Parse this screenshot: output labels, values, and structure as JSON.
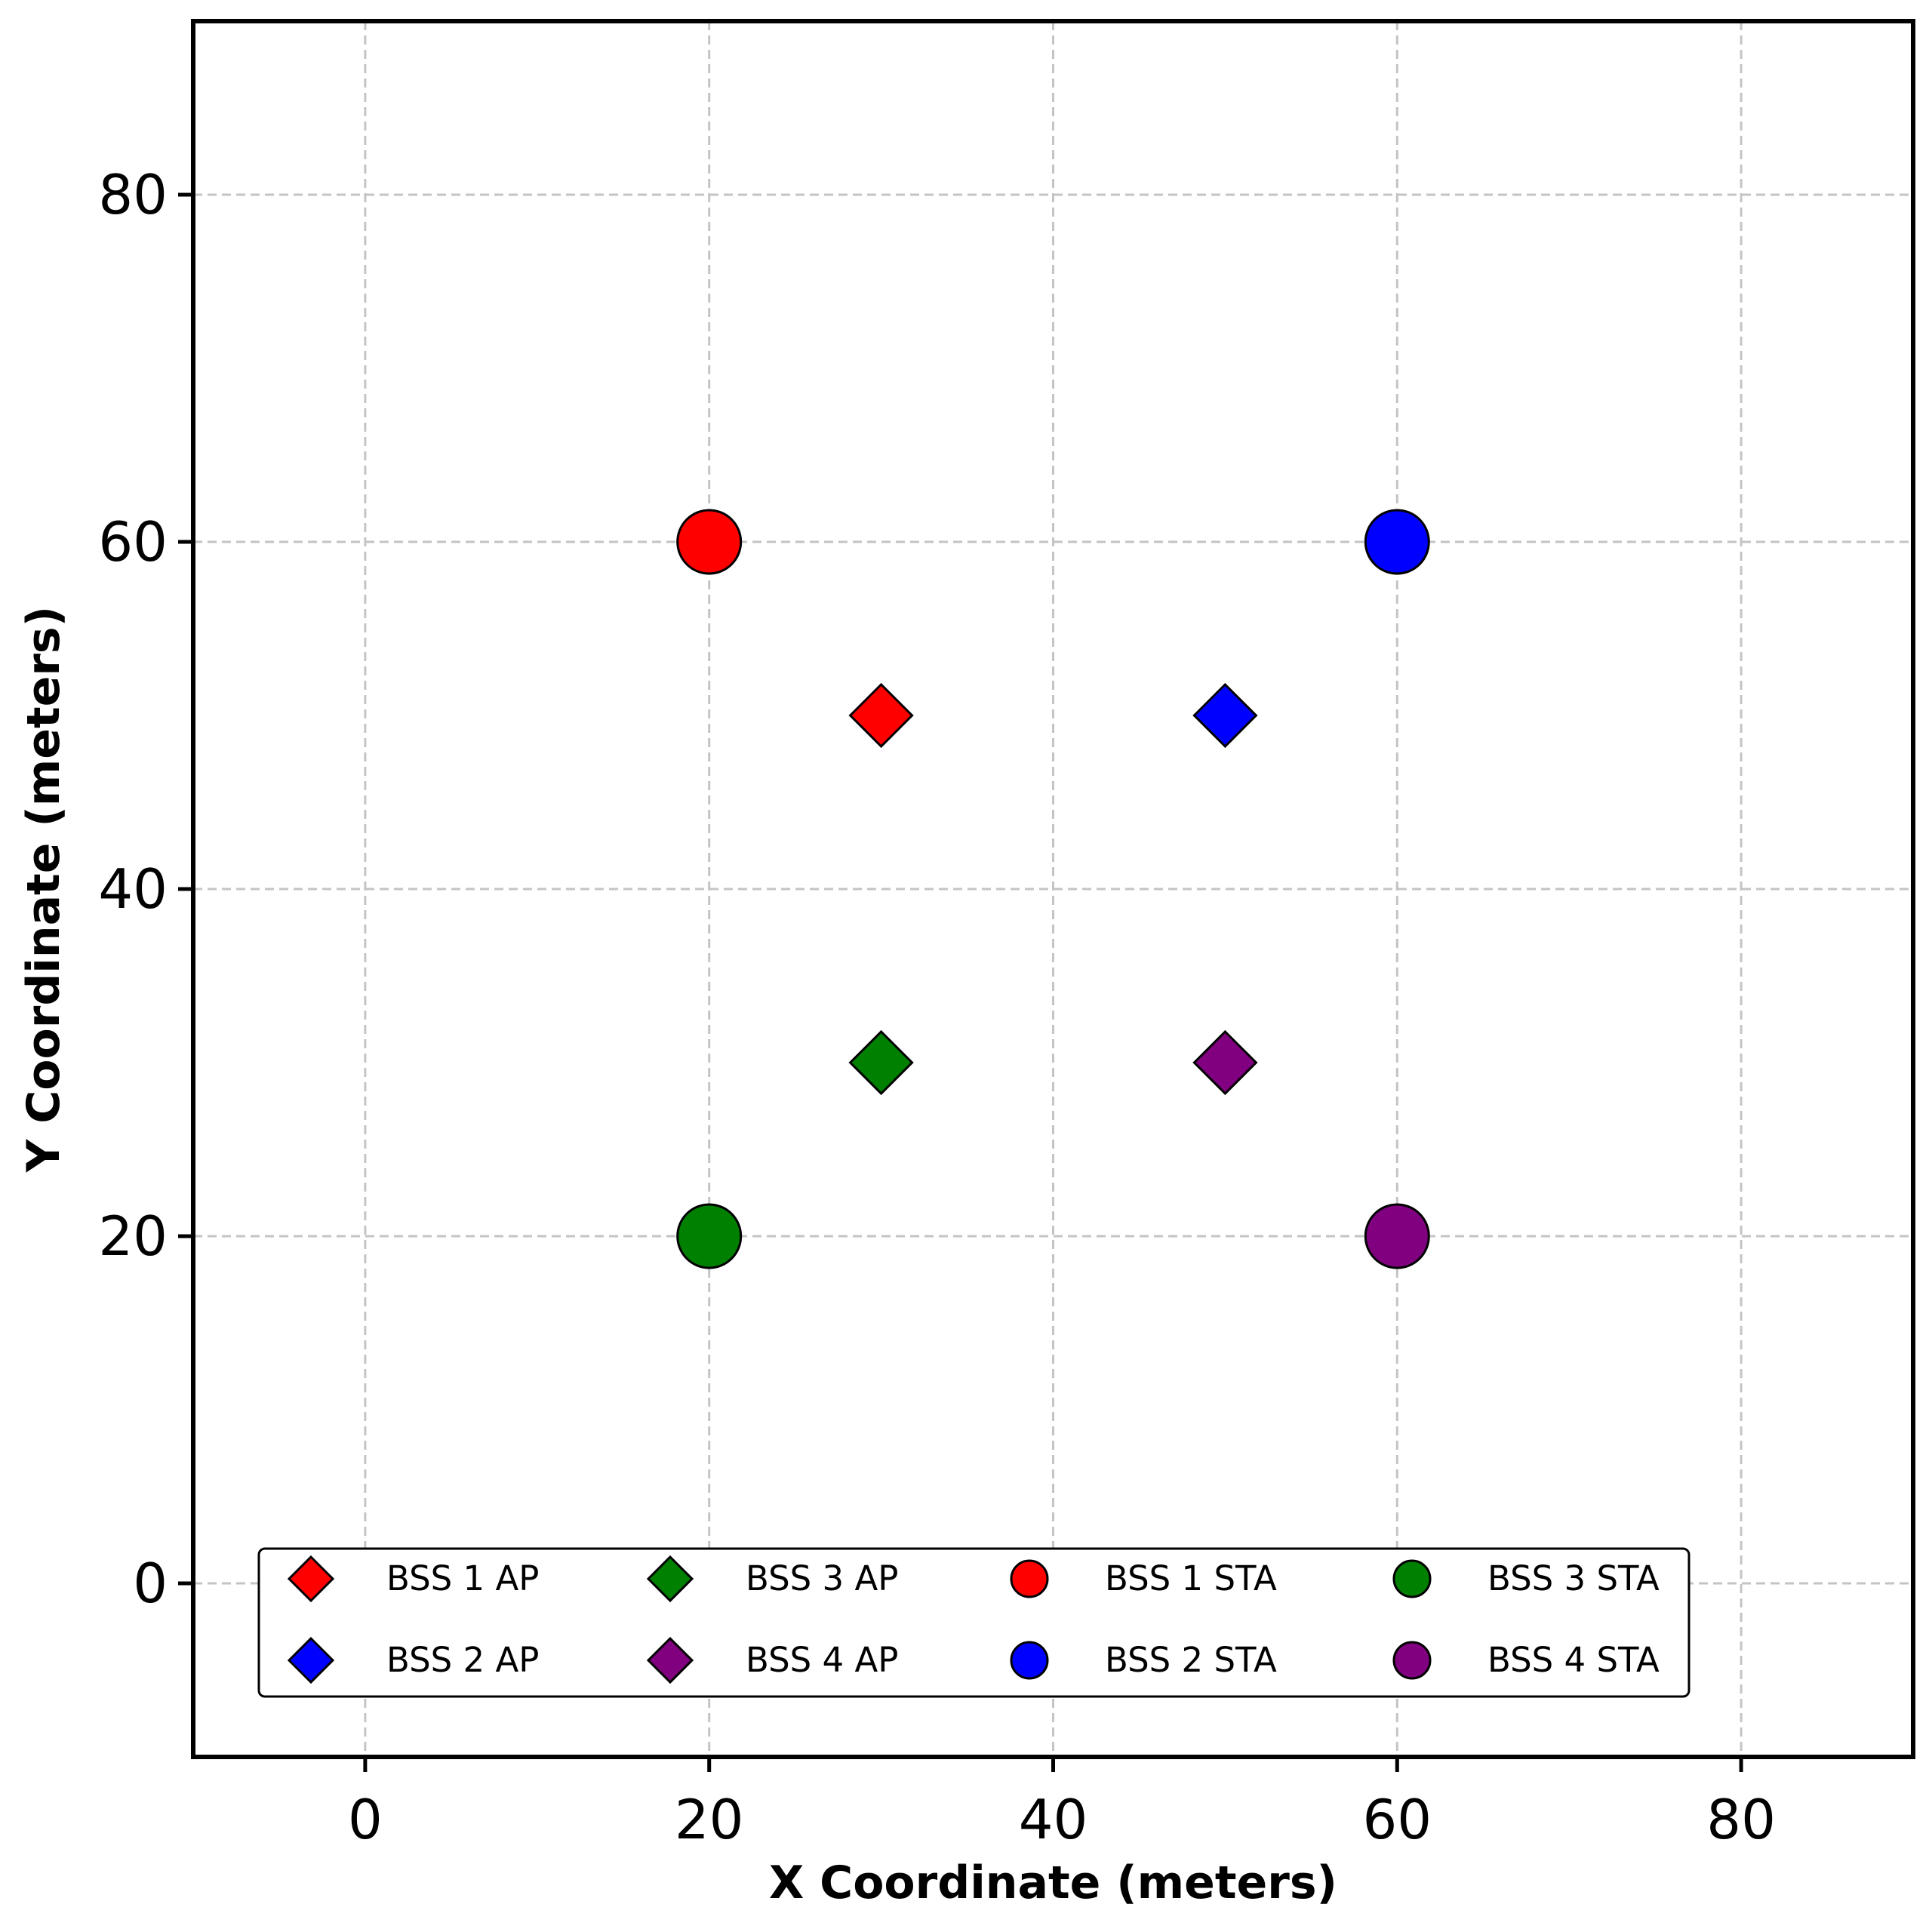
{
  "chart_data": {
    "type": "scatter",
    "title": "",
    "xlabel": "X Coordinate (meters)",
    "ylabel": "Y Coordinate (meters)",
    "xlim": [
      -10,
      90
    ],
    "ylim": [
      -10,
      90
    ],
    "xticks": [
      0,
      20,
      40,
      60,
      80
    ],
    "yticks": [
      0,
      20,
      40,
      60,
      80
    ],
    "grid": true,
    "legend_position": "lower-center",
    "legend_columns": 4,
    "series": [
      {
        "name": "BSS 1 AP",
        "marker": "diamond",
        "color": "#ff0000",
        "points": [
          {
            "x": 30,
            "y": 50
          }
        ]
      },
      {
        "name": "BSS 2 AP",
        "marker": "diamond",
        "color": "#0000ff",
        "points": [
          {
            "x": 50,
            "y": 50
          }
        ]
      },
      {
        "name": "BSS 3 AP",
        "marker": "diamond",
        "color": "#008000",
        "points": [
          {
            "x": 30,
            "y": 30
          }
        ]
      },
      {
        "name": "BSS 4 AP",
        "marker": "diamond",
        "color": "#800080",
        "points": [
          {
            "x": 50,
            "y": 30
          }
        ]
      },
      {
        "name": "BSS 1 STA",
        "marker": "circle",
        "color": "#ff0000",
        "points": [
          {
            "x": 20,
            "y": 60
          }
        ]
      },
      {
        "name": "BSS 2 STA",
        "marker": "circle",
        "color": "#0000ff",
        "points": [
          {
            "x": 60,
            "y": 60
          }
        ]
      },
      {
        "name": "BSS 3 STA",
        "marker": "circle",
        "color": "#008000",
        "points": [
          {
            "x": 20,
            "y": 20
          }
        ]
      },
      {
        "name": "BSS 4 STA",
        "marker": "circle",
        "color": "#800080",
        "points": [
          {
            "x": 60,
            "y": 20
          }
        ]
      }
    ]
  }
}
